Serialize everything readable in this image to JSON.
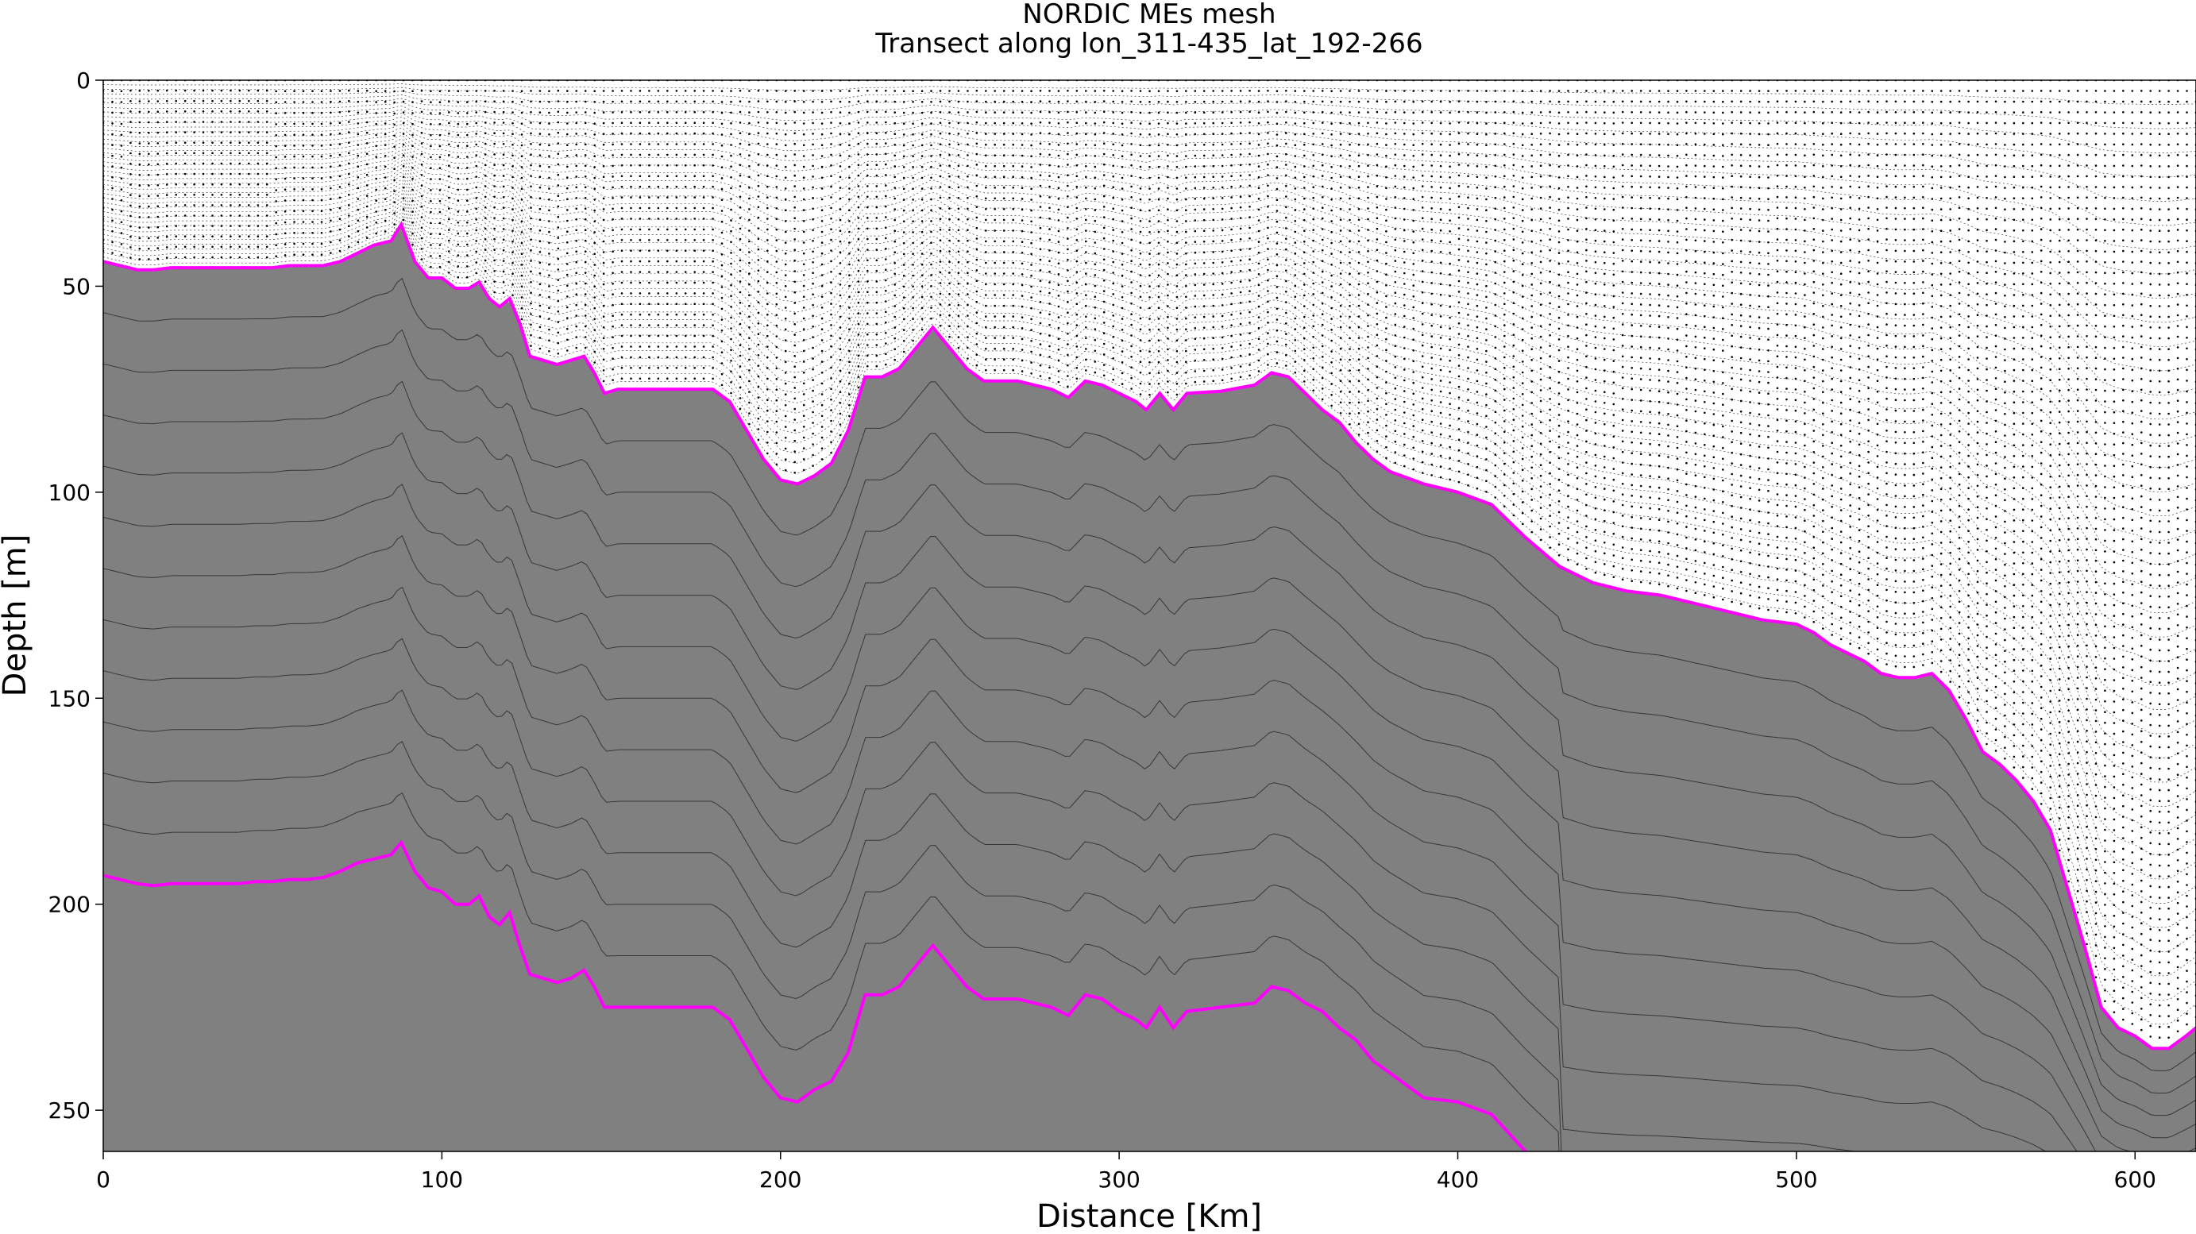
{
  "chart_data": {
    "type": "line",
    "title": "NORDIC MEs mesh",
    "subtitle": "Transect along lon_311-435_lat_192-266",
    "xlabel": "Distance [Km]",
    "ylabel": "Depth [m]",
    "xlim": [
      0,
      618
    ],
    "ylim": [
      260,
      0
    ],
    "y_inverted": true,
    "xticks": [
      0,
      100,
      200,
      300,
      400,
      500,
      600
    ],
    "yticks": [
      0,
      50,
      100,
      150,
      200,
      250
    ],
    "colors": {
      "land_fill": "#808080",
      "envelope": "#ff00ff",
      "mesh_line": "#000000"
    },
    "mesh": {
      "levels_above_envelope": 40,
      "levels_between_envelopes": 12,
      "columns_with_points": 230
    },
    "series": [
      {
        "role": "envelope_1",
        "x": [
          0,
          5,
          10,
          15,
          20,
          25,
          30,
          35,
          40,
          45,
          50,
          55,
          60,
          65,
          70,
          75,
          80,
          85,
          88,
          92,
          96,
          100,
          104,
          108,
          111,
          114,
          117,
          120,
          123,
          126,
          130,
          134,
          138,
          142,
          145,
          148,
          152,
          160,
          170,
          180,
          185,
          190,
          195,
          200,
          205,
          210,
          215,
          220,
          225,
          230,
          235,
          240,
          245,
          250,
          255,
          260,
          270,
          280,
          285,
          290,
          295,
          300,
          305,
          308,
          312,
          316,
          320,
          330,
          340,
          345,
          350,
          355,
          360,
          365,
          370,
          375,
          380,
          390,
          400,
          410,
          420,
          430,
          440,
          450,
          460,
          470,
          480,
          490,
          500,
          505,
          510,
          515,
          520,
          525,
          530,
          535,
          540,
          545,
          550,
          555,
          560,
          565,
          570,
          575,
          580,
          585,
          590,
          595,
          600,
          605,
          610,
          615,
          618
        ],
        "y": [
          44,
          45,
          46,
          46,
          45.5,
          45.5,
          45.5,
          45.5,
          45.5,
          45.5,
          45.5,
          45,
          45,
          45,
          44,
          42,
          40,
          39,
          35,
          44,
          48,
          48,
          50.5,
          50.5,
          49,
          53,
          55,
          53,
          59,
          67,
          68,
          69,
          68,
          67,
          71,
          76,
          75,
          75,
          75,
          75,
          78,
          85,
          92,
          97,
          98,
          96,
          93,
          85,
          72,
          72,
          70,
          65,
          60,
          65,
          70,
          73,
          73,
          75,
          77,
          73,
          74,
          76,
          78,
          80,
          76,
          80,
          76,
          75.5,
          74,
          71,
          72,
          76,
          80,
          83,
          88,
          92,
          95,
          98,
          100,
          103,
          111,
          118,
          122,
          124,
          125,
          127,
          129,
          131,
          132,
          134,
          137,
          139,
          141,
          144,
          145,
          145,
          144,
          148,
          155,
          163,
          166,
          170,
          175,
          182,
          196,
          210,
          225,
          230,
          232,
          235,
          235,
          232,
          230
        ]
      },
      {
        "role": "envelope_2",
        "x": [
          0,
          5,
          10,
          15,
          20,
          25,
          30,
          35,
          40,
          45,
          50,
          55,
          60,
          65,
          70,
          75,
          80,
          85,
          88,
          92,
          96,
          100,
          104,
          108,
          111,
          114,
          117,
          120,
          123,
          126,
          130,
          134,
          138,
          142,
          145,
          148,
          152,
          160,
          170,
          180,
          185,
          190,
          195,
          200,
          205,
          210,
          215,
          220,
          225,
          230,
          235,
          240,
          245,
          250,
          255,
          260,
          270,
          280,
          285,
          290,
          295,
          300,
          305,
          308,
          312,
          316,
          320,
          330,
          340,
          345,
          350,
          355,
          360,
          365,
          370,
          375,
          380,
          390,
          400,
          410,
          420,
          430
        ],
        "y": [
          193,
          194,
          195,
          195.5,
          195,
          195,
          195,
          195,
          195,
          194.5,
          194.5,
          194,
          194,
          193.5,
          192,
          190,
          189,
          188,
          185,
          192,
          196,
          197,
          200,
          200,
          198,
          203,
          205,
          202,
          210,
          217,
          218,
          219,
          218,
          216,
          220,
          225,
          225,
          225,
          225,
          225,
          228,
          235,
          242,
          247,
          248,
          245,
          243,
          236,
          222,
          222,
          220,
          215,
          210,
          215,
          220,
          223,
          223,
          225,
          227,
          222,
          223,
          226,
          228,
          230,
          225,
          230,
          226,
          225,
          224,
          220,
          221,
          224,
          226,
          230,
          233,
          238,
          241,
          247,
          248,
          251,
          260,
          268
        ]
      }
    ]
  }
}
